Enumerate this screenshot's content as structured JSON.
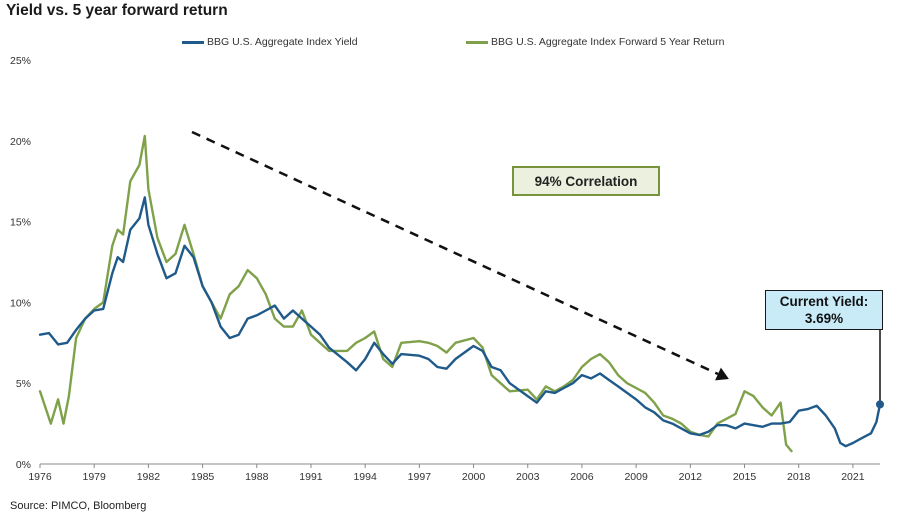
{
  "title": "Yield vs. 5 year forward return",
  "source": "Source: PIMCO, Bloomberg",
  "annotation_correlation": "94% Correlation",
  "annotation_current_label": "Current Yield:",
  "annotation_current_value": "3.69%",
  "colors": {
    "yield": "#1f5a8a",
    "forward": "#7fa14a",
    "box_green_border": "#77933c",
    "box_blue_fill": "#c9ebf8"
  },
  "chart_data": {
    "type": "line",
    "title": "Yield vs. 5 year forward return",
    "xlim": [
      1976,
      2022.5
    ],
    "ylim": [
      0,
      25
    ],
    "yticks": [
      0,
      5,
      10,
      15,
      20,
      25
    ],
    "ytick_labels": [
      "0%",
      "5%",
      "10%",
      "15%",
      "20%",
      "25%"
    ],
    "xticks": [
      1976,
      1979,
      1982,
      1985,
      1988,
      1991,
      1994,
      1997,
      2000,
      2003,
      2006,
      2009,
      2012,
      2015,
      2018,
      2021
    ],
    "xtick_labels": [
      "1976",
      "1979",
      "1982",
      "1985",
      "1988",
      "1991",
      "1994",
      "1997",
      "2000",
      "2003",
      "2006",
      "2009",
      "2012",
      "2015",
      "2018",
      "2021"
    ],
    "grid": false,
    "legend_position": "top",
    "series": [
      {
        "name": "BBG U.S. Aggregate Index Yield",
        "x": [
          1976,
          1976.5,
          1977,
          1977.5,
          1978,
          1978.5,
          1979,
          1979.5,
          1980,
          1980.3,
          1980.6,
          1981,
          1981.5,
          1981.8,
          1982,
          1982.5,
          1983,
          1983.5,
          1984,
          1984.5,
          1985,
          1985.5,
          1986,
          1986.5,
          1987,
          1987.5,
          1988,
          1988.5,
          1989,
          1989.5,
          1990,
          1990.5,
          1991,
          1991.5,
          1992,
          1993,
          1993.5,
          1994,
          1994.5,
          1995,
          1995.5,
          1996,
          1997,
          1997.5,
          1998,
          1998.5,
          1999,
          2000,
          2000.5,
          2001,
          2001.5,
          2002,
          2003,
          2003.5,
          2004,
          2004.5,
          2005,
          2005.5,
          2006,
          2006.5,
          2007,
          2007.5,
          2008,
          2008.5,
          2009,
          2009.5,
          2010,
          2010.5,
          2011,
          2011.5,
          2012,
          2012.5,
          2013,
          2013.5,
          2014,
          2014.5,
          2015,
          2015.5,
          2016,
          2016.5,
          2017,
          2017.5,
          2018,
          2018.5,
          2019,
          2019.5,
          2020,
          2020.3,
          2020.6,
          2021,
          2021.5,
          2022,
          2022.3,
          2022.5
        ],
        "values": [
          8.0,
          8.1,
          7.4,
          7.5,
          8.3,
          9.0,
          9.5,
          9.6,
          11.8,
          12.8,
          12.5,
          14.5,
          15.2,
          16.5,
          14.8,
          13.0,
          11.5,
          11.8,
          13.5,
          12.8,
          11.0,
          10.0,
          8.5,
          7.8,
          8.0,
          9.0,
          9.2,
          9.5,
          9.8,
          9.0,
          9.5,
          9.0,
          8.5,
          8.0,
          7.2,
          6.3,
          5.8,
          6.5,
          7.5,
          6.8,
          6.2,
          6.8,
          6.7,
          6.5,
          6.0,
          5.9,
          6.5,
          7.3,
          7.0,
          6.0,
          5.8,
          5.0,
          4.2,
          3.8,
          4.5,
          4.4,
          4.7,
          5.0,
          5.5,
          5.3,
          5.6,
          5.2,
          4.8,
          4.4,
          4.0,
          3.5,
          3.2,
          2.7,
          2.5,
          2.2,
          1.9,
          1.8,
          2.0,
          2.4,
          2.4,
          2.2,
          2.5,
          2.4,
          2.3,
          2.5,
          2.5,
          2.6,
          3.3,
          3.4,
          3.6,
          3.0,
          2.2,
          1.3,
          1.1,
          1.3,
          1.6,
          1.9,
          2.6,
          3.69
        ]
      },
      {
        "name": "BBG U.S. Aggregate Index Forward 5 Year Return",
        "x": [
          1976,
          1976.3,
          1976.6,
          1977,
          1977.3,
          1977.6,
          1978,
          1978.5,
          1979,
          1979.5,
          1980,
          1980.3,
          1980.6,
          1981,
          1981.5,
          1981.8,
          1982,
          1982.5,
          1983,
          1983.5,
          1984,
          1984.5,
          1985,
          1985.5,
          1986,
          1986.5,
          1987,
          1987.5,
          1988,
          1988.5,
          1989,
          1989.5,
          1990,
          1990.5,
          1991,
          1991.5,
          1992,
          1993,
          1993.5,
          1994,
          1994.5,
          1995,
          1995.5,
          1996,
          1997,
          1997.5,
          1998,
          1998.5,
          1999,
          2000,
          2000.5,
          2001,
          2001.5,
          2002,
          2003,
          2003.5,
          2004,
          2004.5,
          2005,
          2005.5,
          2006,
          2006.5,
          2007,
          2007.5,
          2008,
          2008.5,
          2009,
          2009.5,
          2010,
          2010.5,
          2011,
          2011.5,
          2012,
          2012.5,
          2013,
          2013.5,
          2014,
          2014.5,
          2015,
          2015.5,
          2016,
          2016.5,
          2017,
          2017.3,
          2017.6
        ],
        "values": [
          4.5,
          3.5,
          2.5,
          4.0,
          2.5,
          4.2,
          7.8,
          9.0,
          9.6,
          10.0,
          13.5,
          14.5,
          14.2,
          17.5,
          18.5,
          20.3,
          17.0,
          14.0,
          12.5,
          13.0,
          14.8,
          13.0,
          11.0,
          10.0,
          9.0,
          10.5,
          11.0,
          12.0,
          11.5,
          10.5,
          9.0,
          8.5,
          8.5,
          9.5,
          8.0,
          7.5,
          7.0,
          7.0,
          7.5,
          7.8,
          8.2,
          6.5,
          6.0,
          7.5,
          7.6,
          7.5,
          7.3,
          6.9,
          7.5,
          7.8,
          7.2,
          5.5,
          5.0,
          4.5,
          4.6,
          4.0,
          4.8,
          4.5,
          4.8,
          5.2,
          6.0,
          6.5,
          6.8,
          6.3,
          5.5,
          5.0,
          4.7,
          4.4,
          3.8,
          3.0,
          2.8,
          2.5,
          2.0,
          1.8,
          1.7,
          2.5,
          2.8,
          3.1,
          4.5,
          4.2,
          3.5,
          3.0,
          3.8,
          1.2,
          0.8
        ]
      }
    ]
  }
}
